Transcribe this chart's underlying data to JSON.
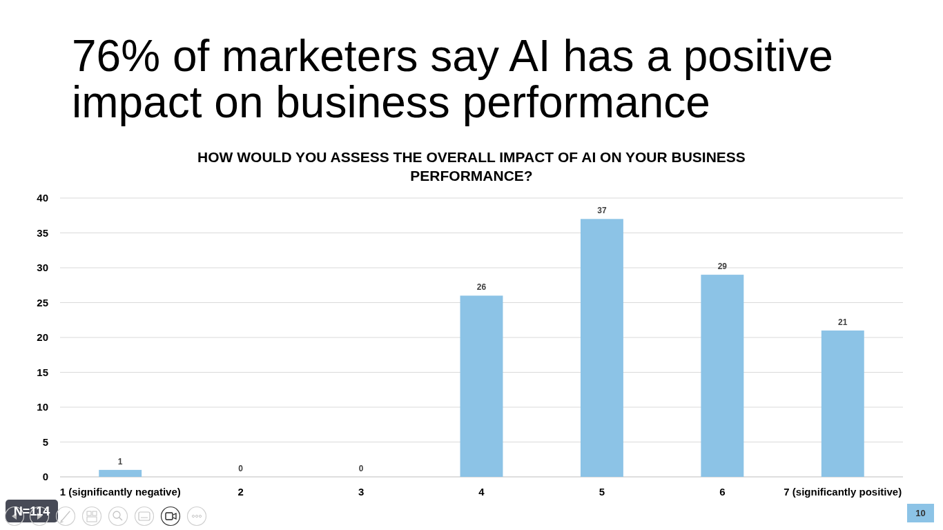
{
  "chart_data": {
    "type": "bar",
    "title": "76% of marketers say AI has a positive impact on business performance",
    "subtitle": "HOW WOULD YOU ASSESS THE OVERALL IMPACT OF AI ON YOUR BUSINESS PERFORMANCE?",
    "categories": [
      "1 (significantly negative)",
      "2",
      "3",
      "4",
      "5",
      "6",
      "7 (significantly positive)"
    ],
    "values": [
      1,
      0,
      0,
      26,
      37,
      29,
      21
    ],
    "color": "#8cc3e6",
    "ylim": [
      0,
      40
    ],
    "yticks": [
      0,
      5,
      10,
      15,
      20,
      25,
      30,
      35,
      40
    ],
    "grid": "y",
    "data_labels": true,
    "annotations": [
      "N=114",
      "10"
    ]
  }
}
